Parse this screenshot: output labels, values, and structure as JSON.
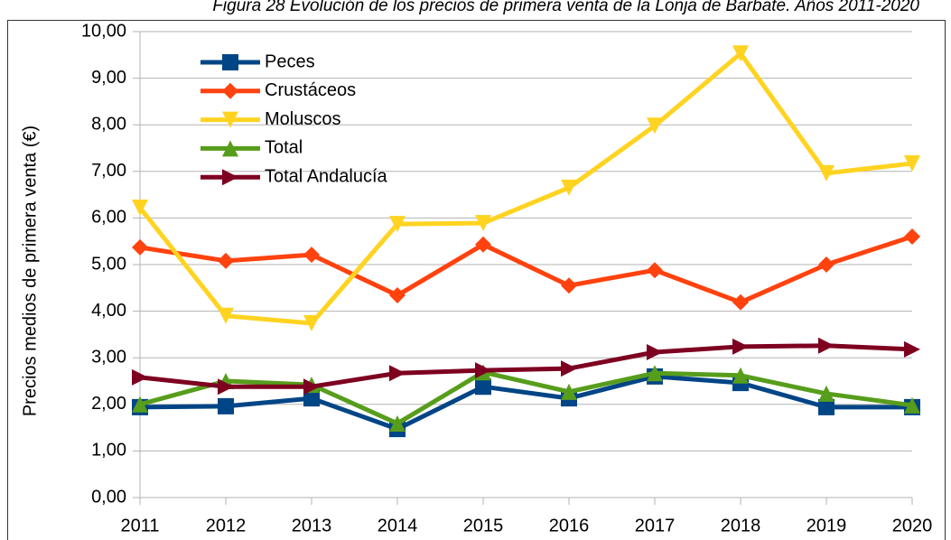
{
  "chart_data": {
    "type": "line",
    "title": "Figura 28 Evolución de los precios de primera venta de la Lonja de Barbate. Años 2011-2020",
    "y_label": "Precios medios de primera venta (€)",
    "categories": [
      "2011",
      "2012",
      "2013",
      "2014",
      "2015",
      "2016",
      "2017",
      "2018",
      "2019",
      "2020"
    ],
    "series": [
      {
        "name": "Peces",
        "color": "#004586",
        "marker": "square",
        "values": [
          1.94,
          1.96,
          2.13,
          1.47,
          2.38,
          2.13,
          2.6,
          2.46,
          1.94,
          1.94
        ]
      },
      {
        "name": "Crustáceos",
        "color": "#ff420e",
        "marker": "diamond",
        "values": [
          5.37,
          5.08,
          5.21,
          4.34,
          5.43,
          4.55,
          4.88,
          4.19,
          5.0,
          5.6
        ]
      },
      {
        "name": "Moluscos",
        "color": "#ffd320",
        "marker": "triangle-down",
        "values": [
          6.22,
          3.9,
          3.74,
          5.87,
          5.89,
          6.65,
          7.98,
          9.53,
          6.96,
          7.17
        ]
      },
      {
        "name": "Total",
        "color": "#579d1c",
        "marker": "triangle-up",
        "values": [
          2.0,
          2.5,
          2.42,
          1.59,
          2.69,
          2.27,
          2.67,
          2.62,
          2.23,
          1.98
        ]
      },
      {
        "name": "Total Andalucía",
        "color": "#7e0021",
        "marker": "triangle-right",
        "values": [
          2.58,
          2.38,
          2.38,
          2.67,
          2.73,
          2.77,
          3.12,
          3.24,
          3.26,
          3.18
        ]
      }
    ],
    "ylim": [
      0,
      10
    ],
    "yticks": [
      {
        "value": 0,
        "label": "0,00"
      },
      {
        "value": 1,
        "label": "1,00"
      },
      {
        "value": 2,
        "label": "2,00"
      },
      {
        "value": 3,
        "label": "3,00"
      },
      {
        "value": 4,
        "label": "4,00"
      },
      {
        "value": 5,
        "label": "5,00"
      },
      {
        "value": 6,
        "label": "6,00"
      },
      {
        "value": 7,
        "label": "7,00"
      },
      {
        "value": 8,
        "label": "8,00"
      },
      {
        "value": 9,
        "label": "9,00"
      },
      {
        "value": 10,
        "label": "10,00"
      }
    ],
    "grid": true,
    "legend": "top-left"
  }
}
